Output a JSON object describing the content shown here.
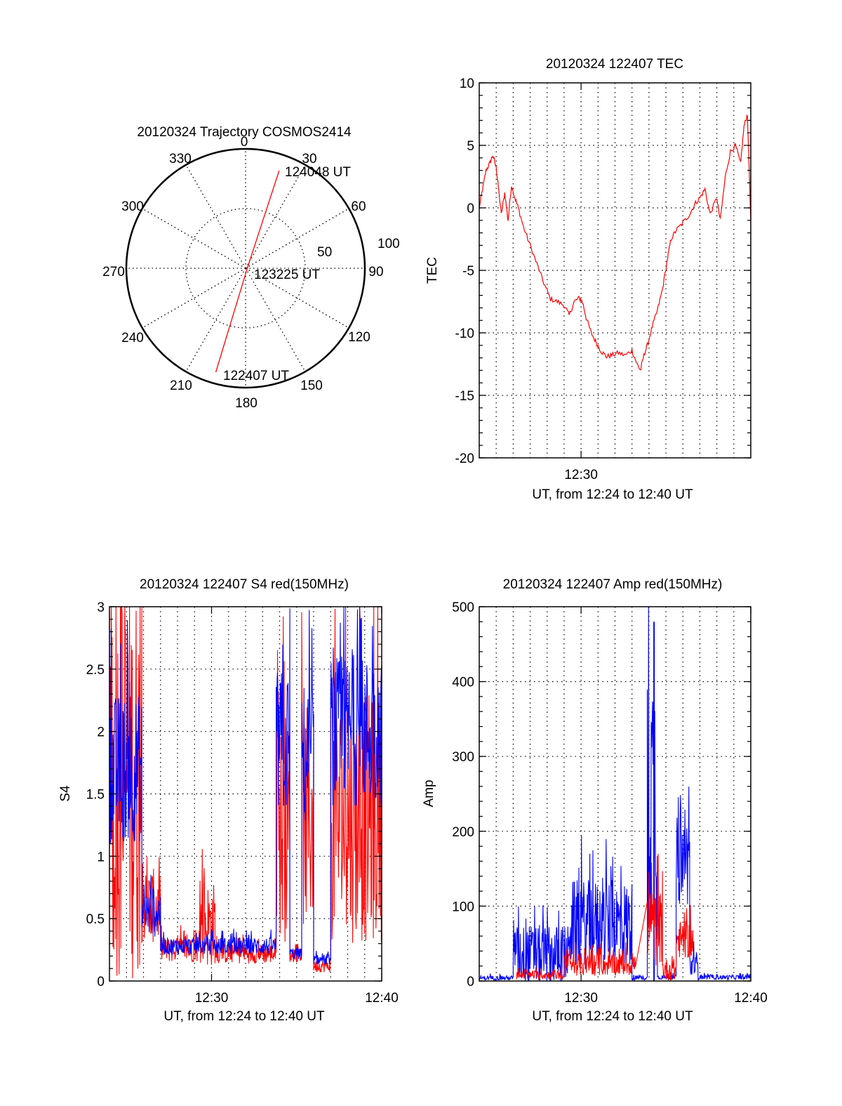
{
  "chart_data": [
    {
      "type": "polar",
      "title": "20120324 Trajectory COSMOS2414",
      "angle_labels": [
        "0",
        "30",
        "60",
        "90",
        "120",
        "150",
        "180",
        "210",
        "240",
        "270",
        "300",
        "330"
      ],
      "radial_labels": [
        "50",
        "100"
      ],
      "radial_range": [
        0,
        100
      ],
      "grid": true,
      "series": [
        {
          "name": "trajectory",
          "color": "#ff0000",
          "points": [
            {
              "azimuth": 196,
              "zenith": 90,
              "label": "122407 UT"
            },
            {
              "azimuth": 60,
              "zenith": 2,
              "label": "123225 UT"
            },
            {
              "azimuth": 19,
              "zenith": 86,
              "label": "124048 UT"
            }
          ]
        }
      ],
      "annotations": [
        "122407 UT",
        "123225 UT",
        "124048 UT"
      ]
    },
    {
      "type": "line",
      "title": "20120324 122407 TEC",
      "xlabel": "UT, from 12:24 to 12:40 UT",
      "ylabel": "TEC",
      "xlim": [
        0,
        16
      ],
      "ylim": [
        -20,
        10
      ],
      "xticks": [
        {
          "value": 6,
          "label": "12:30"
        }
      ],
      "yticks": [
        "10",
        "5",
        "0",
        "-5",
        "-10",
        "-15",
        "-20"
      ],
      "ytick_values": [
        10,
        5,
        0,
        -5,
        -10,
        -15,
        -20
      ],
      "grid": true,
      "series": [
        {
          "name": "TEC",
          "color": "#ff0000",
          "x": [
            0.0,
            0.2,
            0.4,
            0.6,
            0.8,
            1.0,
            1.1,
            1.3,
            1.5,
            1.7,
            1.9,
            2.1,
            2.3,
            2.6,
            3.0,
            3.4,
            3.8,
            4.2,
            4.6,
            5.0,
            5.3,
            5.6,
            5.9,
            6.1,
            6.3,
            6.6,
            6.9,
            7.2,
            7.5,
            7.8,
            8.2,
            8.6,
            9.0,
            9.3,
            9.5,
            9.7,
            9.9,
            10.2,
            10.5,
            10.8,
            11.1,
            11.3,
            11.6,
            12.0,
            12.4,
            12.7,
            13.0,
            13.3,
            13.6,
            14.0,
            14.2,
            14.5,
            14.8,
            15.1,
            15.4,
            15.6,
            15.8,
            16.0
          ],
          "y": [
            0.0,
            1.5,
            3.0,
            3.5,
            4.2,
            3.2,
            2.0,
            -0.5,
            1.2,
            -1.0,
            1.8,
            0.8,
            0.0,
            -1.5,
            -3.0,
            -4.5,
            -6.0,
            -7.3,
            -7.5,
            -7.8,
            -8.6,
            -7.5,
            -7.2,
            -7.6,
            -8.8,
            -10.0,
            -10.8,
            -11.5,
            -11.9,
            -11.8,
            -11.6,
            -11.8,
            -11.4,
            -12.5,
            -13.0,
            -11.8,
            -11.0,
            -9.5,
            -8.2,
            -6.5,
            -4.0,
            -2.5,
            -1.8,
            -1.2,
            -0.5,
            0.3,
            0.8,
            1.5,
            -0.5,
            0.8,
            -1.0,
            2.5,
            4.5,
            5.0,
            3.5,
            6.5,
            7.5,
            -1.0
          ]
        }
      ]
    },
    {
      "type": "line",
      "title": "20120324 122407 S4 red(150MHz)",
      "xlabel": "UT, from 12:24 to 12:40 UT",
      "ylabel": "S4",
      "xlim": [
        0,
        16
      ],
      "ylim": [
        0,
        3
      ],
      "xticks": [
        {
          "value": 6,
          "label": "12:30"
        },
        {
          "value": 16,
          "label": "12:40"
        }
      ],
      "yticks": [
        "3",
        "2.5",
        "2",
        "1.5",
        "1",
        "0.5",
        "0"
      ],
      "ytick_values": [
        3,
        2.5,
        2,
        1.5,
        1,
        0.5,
        0
      ],
      "grid": true,
      "series": [
        {
          "name": "red (150MHz)",
          "color": "#ff0000",
          "segments": [
            {
              "x_range": [
                0.0,
                1.9
              ],
              "level": 1.6,
              "spread": 1.6
            },
            {
              "x_range": [
                1.9,
                3.0
              ],
              "level": 0.6,
              "spread": 0.3
            },
            {
              "x_range": [
                3.0,
                5.3
              ],
              "level": 0.25,
              "spread": 0.1
            },
            {
              "x_range": [
                5.3,
                6.2
              ],
              "level": 0.45,
              "spread": 0.35
            },
            {
              "x_range": [
                6.2,
                9.8
              ],
              "level": 0.22,
              "spread": 0.08
            },
            {
              "x_range": [
                9.8,
                10.6
              ],
              "level": 1.2,
              "spread": 0.9
            },
            {
              "x_range": [
                10.6,
                11.3
              ],
              "level": 0.2,
              "spread": 0.05
            },
            {
              "x_range": [
                11.3,
                12.0
              ],
              "level": 1.3,
              "spread": 0.9
            },
            {
              "x_range": [
                12.0,
                13.0
              ],
              "level": 0.12,
              "spread": 0.05
            },
            {
              "x_range": [
                13.0,
                16.0
              ],
              "level": 1.3,
              "spread": 1.0
            }
          ]
        },
        {
          "name": "blue",
          "color": "#0000ff",
          "segments": [
            {
              "x_range": [
                0.0,
                1.9
              ],
              "level": 1.7,
              "spread": 0.6
            },
            {
              "x_range": [
                1.9,
                3.0
              ],
              "level": 0.55,
              "spread": 0.2
            },
            {
              "x_range": [
                3.0,
                9.8
              ],
              "level": 0.28,
              "spread": 0.07
            },
            {
              "x_range": [
                9.8,
                10.6
              ],
              "level": 1.9,
              "spread": 0.6
            },
            {
              "x_range": [
                10.6,
                11.3
              ],
              "level": 0.22,
              "spread": 0.05
            },
            {
              "x_range": [
                11.3,
                12.0
              ],
              "level": 1.8,
              "spread": 0.6
            },
            {
              "x_range": [
                12.0,
                13.0
              ],
              "level": 0.17,
              "spread": 0.04
            },
            {
              "x_range": [
                13.0,
                16.0
              ],
              "level": 2.0,
              "spread": 0.6
            }
          ]
        }
      ]
    },
    {
      "type": "line",
      "title": "20120324 122407 Amp red(150MHz)",
      "xlabel": "UT, from 12:24 to 12:40 UT",
      "ylabel": "Amp",
      "xlim": [
        0,
        16
      ],
      "ylim": [
        0,
        500
      ],
      "xticks": [
        {
          "value": 6,
          "label": "12:30"
        },
        {
          "value": 16,
          "label": "12:40"
        }
      ],
      "yticks": [
        "500",
        "400",
        "300",
        "200",
        "100",
        "0"
      ],
      "ytick_values": [
        500,
        400,
        300,
        200,
        100,
        0
      ],
      "grid": true,
      "series": [
        {
          "name": "blue",
          "color": "#0000ff",
          "segments": [
            {
              "x_range": [
                0.0,
                2.0
              ],
              "level": 4,
              "spread": 3
            },
            {
              "x_range": [
                2.0,
                5.3
              ],
              "level": 35,
              "spread": 40
            },
            {
              "x_range": [
                5.3,
                9.0
              ],
              "level": 75,
              "spread": 60
            },
            {
              "x_range": [
                9.0,
                9.9
              ],
              "level": 4,
              "spread": 3
            },
            {
              "x_range": [
                9.9,
                10.5
              ],
              "level": 250,
              "spread": 200
            },
            {
              "x_range": [
                10.5,
                11.6
              ],
              "level": 5,
              "spread": 3
            },
            {
              "x_range": [
                11.6,
                12.4
              ],
              "level": 160,
              "spread": 60
            },
            {
              "x_range": [
                12.4,
                12.9
              ],
              "level": 20,
              "spread": 20
            },
            {
              "x_range": [
                12.9,
                16.0
              ],
              "level": 5,
              "spread": 3
            }
          ],
          "peak": {
            "x": 10.3,
            "y": 480
          }
        },
        {
          "name": "red (150MHz)",
          "color": "#ff0000",
          "segments": [
            {
              "x_range": [
                2.2,
                5.0
              ],
              "level": 8,
              "spread": 6
            },
            {
              "x_range": [
                5.0,
                9.2
              ],
              "level": 22,
              "spread": 15
            },
            {
              "x_range": [
                9.9,
                10.8
              ],
              "level": 70,
              "spread": 50
            },
            {
              "x_range": [
                10.8,
                11.6
              ],
              "level": 15,
              "spread": 15
            },
            {
              "x_range": [
                11.6,
                12.6
              ],
              "level": 55,
              "spread": 25
            }
          ]
        }
      ]
    }
  ]
}
